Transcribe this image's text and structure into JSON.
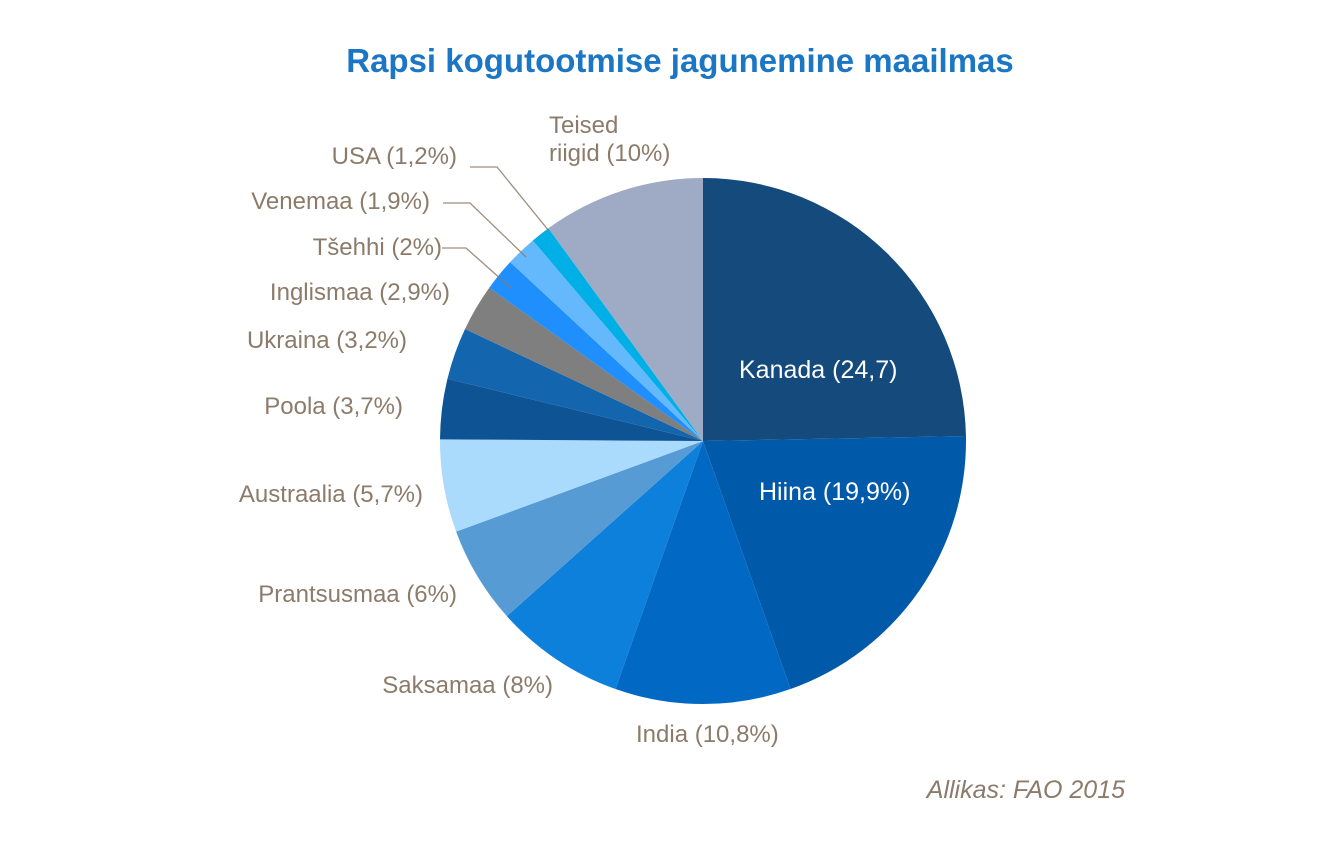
{
  "page": {
    "background": "#FFFFFF",
    "title": "Rapsi kogutootmise jagunemine maailmas",
    "title_color": "#1B76C4",
    "label_color": "#8C7B6A",
    "source_note": "Allikas: FAO 2015"
  },
  "chart_data": {
    "type": "pie",
    "title": "Rapsi kogutootmise jagunemine maailmas",
    "unit": "%",
    "start_angle_deg": 0,
    "direction": "clockwise",
    "legend_position": "none",
    "grid": false,
    "source": "Allikas: FAO 2015",
    "slices": [
      {
        "name": "Kanada",
        "value": 24.7,
        "label": "Kanada (24,7)",
        "color": "#144A7C",
        "label_placement": "inside",
        "label_text_color": "#FFFFFF"
      },
      {
        "name": "Hiina",
        "value": 19.9,
        "label": "Hiina (19,9%)",
        "color": "#0059A9",
        "label_placement": "inside",
        "label_text_color": "#FFFFFF"
      },
      {
        "name": "India",
        "value": 10.8,
        "label": "India (10,8%)",
        "color": "#0169C4",
        "label_placement": "outside"
      },
      {
        "name": "Saksamaa",
        "value": 8,
        "label": "Saksamaa (8%)",
        "color": "#0C80DA",
        "label_placement": "outside"
      },
      {
        "name": "Prantsusmaa",
        "value": 6,
        "label": "Prantsusmaa (6%)",
        "color": "#579BD5",
        "label_placement": "outside"
      },
      {
        "name": "Austraalia",
        "value": 5.7,
        "label": "Austraalia (5,7%)",
        "color": "#AADAFC",
        "label_placement": "outside"
      },
      {
        "name": "Poola",
        "value": 3.7,
        "label": "Poola (3,7%)",
        "color": "#0E5494",
        "label_placement": "outside"
      },
      {
        "name": "Ukraina",
        "value": 3.2,
        "label": "Ukraina (3,2%)",
        "color": "#1365AE",
        "label_placement": "outside"
      },
      {
        "name": "Inglismaa",
        "value": 2.9,
        "label": "Inglismaa (2,9%)",
        "color": "#7F7F7F",
        "label_placement": "outside"
      },
      {
        "name": "Tšehhi",
        "value": 2,
        "label": "Tšehhi (2%)",
        "color": "#1E8FFC",
        "label_placement": "outside",
        "leader_line": true
      },
      {
        "name": "Venemaa",
        "value": 1.9,
        "label": "Venemaa (1,9%)",
        "color": "#63B9FC",
        "label_placement": "outside",
        "leader_line": true
      },
      {
        "name": "USA",
        "value": 1.2,
        "label": "USA (1,2%)",
        "color": "#00AFE6",
        "label_placement": "outside",
        "leader_line": true
      },
      {
        "name": "Teised riigid",
        "value": 10,
        "label": "Teised riigid (10%)",
        "label_line1": "Teised",
        "label_line2": "riigid (10%)",
        "color": "#9FAAC5",
        "label_placement": "outside"
      }
    ]
  }
}
